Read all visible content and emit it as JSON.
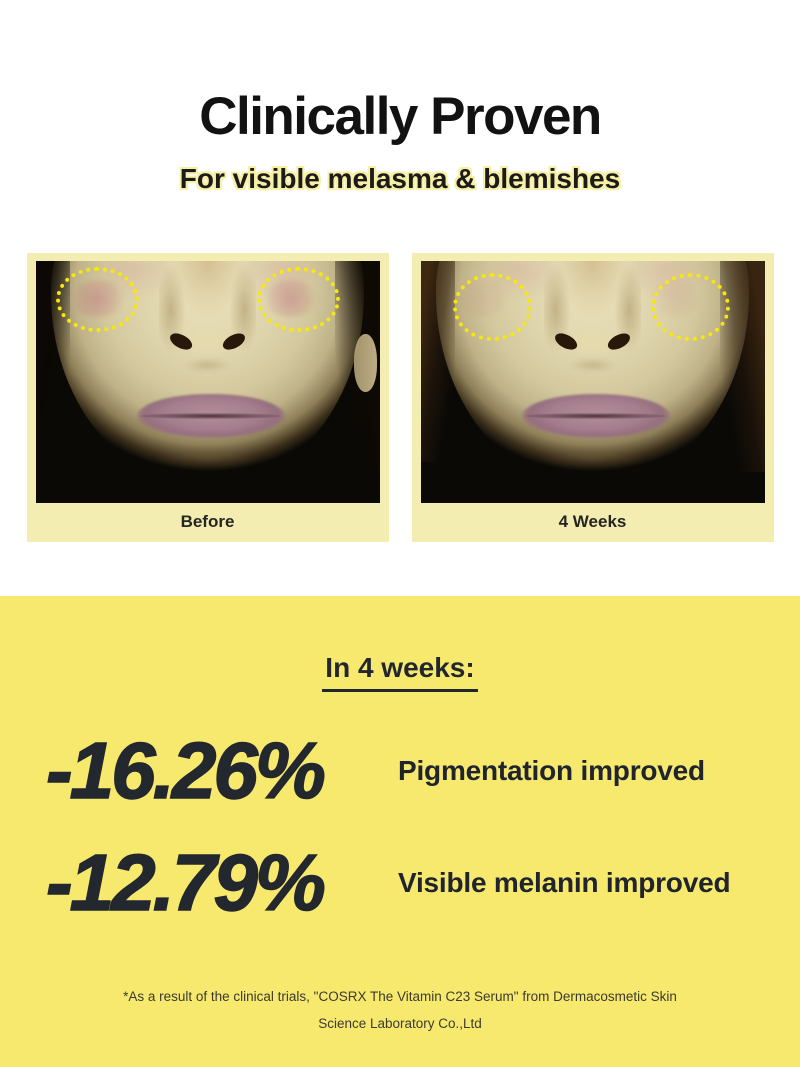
{
  "header": {
    "title": "Clinically Proven",
    "subtitle": "For visible melasma & blemishes"
  },
  "comparison": {
    "before_label": "Before",
    "after_label": "4 Weeks"
  },
  "results": {
    "heading": "In 4 weeks:",
    "stats": [
      {
        "value": "-16.26%",
        "label": "Pigmentation improved"
      },
      {
        "value": "-12.79%",
        "label": "Visible melanin improved"
      }
    ],
    "disclaimer_lines": [
      "*As a result of the clinical trials, \"COSRX The Vitamin C23 Serum\" from Dermacosmetic Skin",
      "Science Laboratory Co.,Ltd"
    ]
  },
  "colors": {
    "band_yellow": "#f7e96d",
    "card_yellow": "#f4edb2",
    "dotted_circle_yellow": "#f8e809",
    "headline_black": "#121212",
    "stat_navy": "#23272e",
    "subtitle_highlight": "#f8f0a4"
  }
}
